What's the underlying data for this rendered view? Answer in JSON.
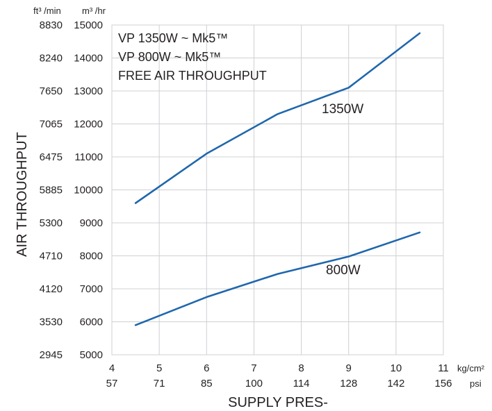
{
  "chart_data": {
    "type": "line",
    "info_lines": [
      "VP 1350W ~ Mk5™",
      "VP 800W ~ Mk5™",
      "FREE AIR THROUGHPUT"
    ],
    "ylabel": "AIR THROUGHPUT",
    "xlabel": "SUPPLY PRES-",
    "y_units": {
      "secondary": "ft³ /min",
      "primary": "m³ /hr"
    },
    "x_units": {
      "primary": "kg/cm²",
      "secondary": "psi"
    },
    "x_ticks_kgcm2": [
      "4",
      "5",
      "6",
      "7",
      "8",
      "9",
      "10",
      "11"
    ],
    "x_ticks_psi": [
      "57",
      "71",
      "85",
      "100",
      "114",
      "128",
      "142",
      "156"
    ],
    "y_ticks_m3hr": [
      "5000",
      "6000",
      "7000",
      "8000",
      "9000",
      "10000",
      "11000",
      "12000",
      "13000",
      "14000",
      "15000"
    ],
    "y_ticks_ft3min": [
      "2945",
      "3530",
      "4120",
      "4710",
      "5300",
      "5885",
      "6475",
      "7065",
      "7650",
      "8240",
      "8830"
    ],
    "xlim": [
      4,
      11
    ],
    "ylim": [
      5000,
      15000
    ],
    "grid": true,
    "series": [
      {
        "name": "1350W",
        "color": "#1f67ad",
        "x": [
          4.5,
          6,
          7.5,
          9,
          10.5
        ],
        "y": [
          9600,
          11100,
          12300,
          13100,
          14750
        ]
      },
      {
        "name": "800W",
        "color": "#1f67ad",
        "x": [
          4.5,
          6,
          7.5,
          9,
          10.5
        ],
        "y": [
          5900,
          6750,
          7450,
          7980,
          8710
        ]
      }
    ]
  }
}
